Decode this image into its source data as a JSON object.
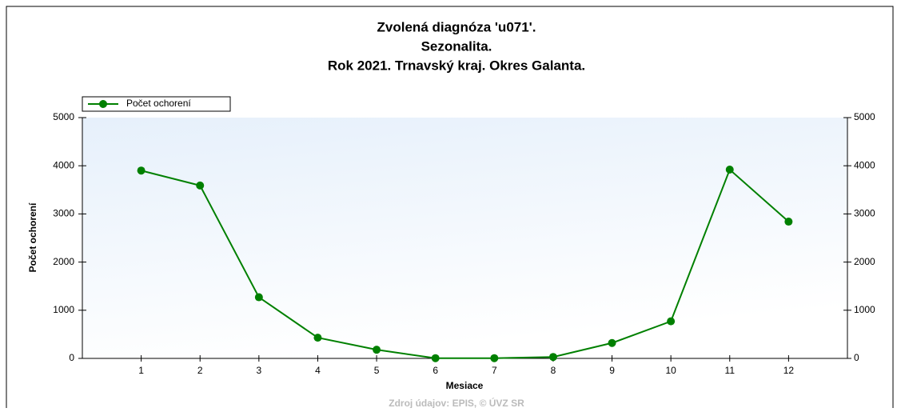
{
  "chart_data": {
    "type": "line",
    "title": [
      "Zvolená diagnóza 'u071'.",
      "Sezonalita.",
      "Rok 2021. Trnavský kraj. Okres Galanta."
    ],
    "x_label": "Mesiace",
    "y_label": "Počet ochorení",
    "source": "Zdroj údajov: EPIS, © ÚVZ SR",
    "x": [
      1,
      2,
      3,
      4,
      5,
      6,
      7,
      8,
      9,
      10,
      11,
      12
    ],
    "series": [
      {
        "name": "Počet ochorení",
        "color": "#008000",
        "values": [
          3900,
          3590,
          1270,
          430,
          180,
          5,
          5,
          30,
          320,
          770,
          3920,
          2840
        ]
      }
    ],
    "xlim": [
      0,
      13
    ],
    "xticks": [
      1,
      2,
      3,
      4,
      5,
      6,
      7,
      8,
      9,
      10,
      11,
      12
    ],
    "ylim": [
      0,
      5000
    ],
    "yticks": [
      0,
      1000,
      2000,
      3000,
      4000,
      5000
    ],
    "y2lim": [
      0,
      5000
    ],
    "y2ticks": [
      0,
      1000,
      2000,
      3000,
      4000,
      5000
    ],
    "legend": "top-left"
  }
}
